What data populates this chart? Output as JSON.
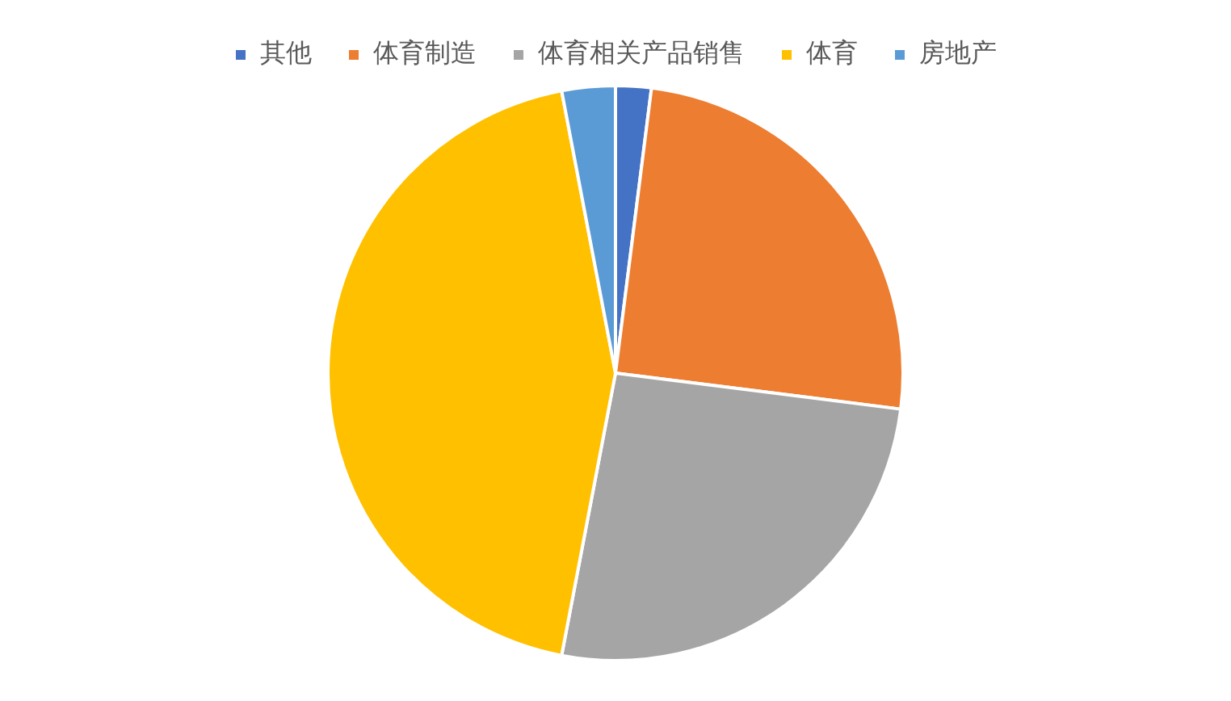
{
  "chart_data": {
    "type": "pie",
    "categories": [
      "其他",
      "体育制造",
      "体育相关产品销售",
      "体育",
      "房地产"
    ],
    "values": [
      2,
      25,
      26,
      44,
      3
    ],
    "colors": [
      "#4472c4",
      "#ed7d31",
      "#a5a5a5",
      "#ffc000",
      "#5b9bd5"
    ],
    "legend": "top"
  }
}
